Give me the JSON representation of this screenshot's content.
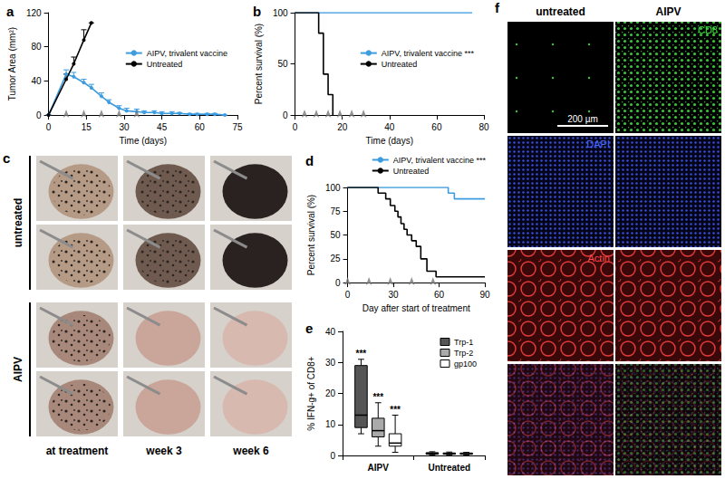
{
  "chart_data": [
    {
      "label": "a",
      "type": "line",
      "xlabel": "Time (days)",
      "ylabel": "Tumor Area (mm²)",
      "xlim": [
        0,
        75
      ],
      "xticks": [
        0,
        15,
        30,
        45,
        60,
        75
      ],
      "ylim": [
        0,
        120
      ],
      "yticks": [
        0,
        40,
        80,
        120
      ],
      "grid": false,
      "legend": "right",
      "marker": "circle",
      "series": [
        {
          "name": "AIPV, trivalent vaccine",
          "color": "#3d9be0",
          "x": [
            0,
            7,
            10,
            14,
            17,
            21,
            24,
            28,
            31,
            35,
            38,
            42,
            45,
            49,
            52,
            56,
            59,
            63,
            66,
            70
          ],
          "values": [
            0,
            48,
            45,
            38,
            32,
            22,
            15,
            8,
            5,
            4,
            3,
            3,
            2,
            2,
            2,
            1,
            1,
            1,
            1,
            0
          ],
          "errors": [
            0,
            5,
            5,
            4,
            4,
            4,
            3,
            3,
            3,
            3,
            2,
            2,
            2,
            2,
            1,
            1,
            1,
            1,
            1,
            0
          ]
        },
        {
          "name": "Untreated",
          "color": "#000000",
          "x": [
            0,
            7,
            10,
            14,
            17
          ],
          "values": [
            0,
            42,
            60,
            88,
            108
          ],
          "errors": [
            0,
            6,
            8,
            12,
            0
          ]
        }
      ],
      "treatment_days": [
        7,
        14,
        21,
        28,
        35
      ]
    },
    {
      "label": "b",
      "type": "step",
      "xlabel": "Time (days)",
      "ylabel": "Percent survival (%)",
      "xlim": [
        0,
        80
      ],
      "xticks": [
        0,
        20,
        40,
        60,
        80
      ],
      "ylim": [
        0,
        100
      ],
      "yticks": [
        0,
        50,
        100
      ],
      "grid": false,
      "legend": "right",
      "marker": "none",
      "series": [
        {
          "name": "AIPV, trivalent vaccine ***",
          "color": "#3d9be0",
          "x": [
            0,
            75
          ],
          "values": [
            100,
            100
          ]
        },
        {
          "name": "Untreated",
          "color": "#000000",
          "x": [
            0,
            10,
            12,
            14,
            16
          ],
          "values": [
            100,
            80,
            40,
            20,
            0
          ]
        }
      ],
      "treatment_days": [
        4,
        9,
        14,
        19,
        24,
        29
      ]
    },
    {
      "label": "d",
      "type": "step",
      "xlabel": "Day after start of treatment",
      "ylabel": "Percent survival (%)",
      "xlim": [
        0,
        90
      ],
      "xticks": [
        0,
        30,
        60,
        90
      ],
      "ylim": [
        0,
        100
      ],
      "yticks": [
        0,
        25,
        50,
        75,
        100
      ],
      "grid": false,
      "legend": "top",
      "marker": "none",
      "series": [
        {
          "name": "AIPV, trivalent vaccine ***",
          "color": "#3d9be0",
          "x": [
            0,
            66,
            70,
            90
          ],
          "values": [
            100,
            94,
            88,
            88
          ]
        },
        {
          "name": "Untreated",
          "color": "#000000",
          "x": [
            0,
            20,
            25,
            28,
            31,
            33,
            35,
            37,
            39,
            42,
            45,
            48,
            52,
            58,
            90
          ],
          "values": [
            100,
            94,
            88,
            81,
            75,
            69,
            62,
            56,
            50,
            44,
            38,
            25,
            12,
            6,
            6
          ]
        }
      ],
      "treatment_days": [
        0,
        14,
        28,
        42,
        56
      ]
    },
    {
      "label": "e",
      "type": "boxplot",
      "ylabel": "% IFN-g+ of CD8+",
      "categories": [
        "AIPV",
        "Untreated"
      ],
      "ylim": [
        0,
        40
      ],
      "yticks": [
        0,
        10,
        20,
        30,
        40
      ],
      "grid": false,
      "legend": "top-right",
      "series": [
        {
          "name": "Trp-1",
          "color": "#555555",
          "values": [
            [
              7,
              9,
              13,
              29,
              31
            ],
            [
              0.2,
              0.4,
              0.6,
              0.9,
              1.2
            ]
          ]
        },
        {
          "name": "Trp-2",
          "color": "#aaaaaa",
          "values": [
            [
              3,
              6,
              8,
              12,
              17
            ],
            [
              0.2,
              0.4,
              0.6,
              0.8,
              1.1
            ]
          ]
        },
        {
          "name": "gp100",
          "color": "#ffffff",
          "values": [
            [
              1,
              3,
              4,
              7,
              13
            ],
            [
              0.2,
              0.4,
              0.5,
              0.8,
              1.0
            ]
          ]
        }
      ],
      "annotations": [
        {
          "series": "Trp-1",
          "category": "AIPV",
          "text": "***"
        },
        {
          "series": "Trp-2",
          "category": "AIPV",
          "text": "***"
        },
        {
          "series": "gp100",
          "category": "AIPV",
          "text": "***"
        }
      ]
    }
  ],
  "panels": [
    {
      "label": "c",
      "rows": [
        "untreated",
        "AIPV"
      ],
      "columns": [
        "at treatment",
        "week 3",
        "week 6"
      ]
    },
    {
      "label": "f",
      "columns": [
        "untreated",
        "AIPV"
      ],
      "rows": [
        "CD8",
        "DAPI",
        "Actin"
      ],
      "scale_bar": "200 µm"
    }
  ]
}
